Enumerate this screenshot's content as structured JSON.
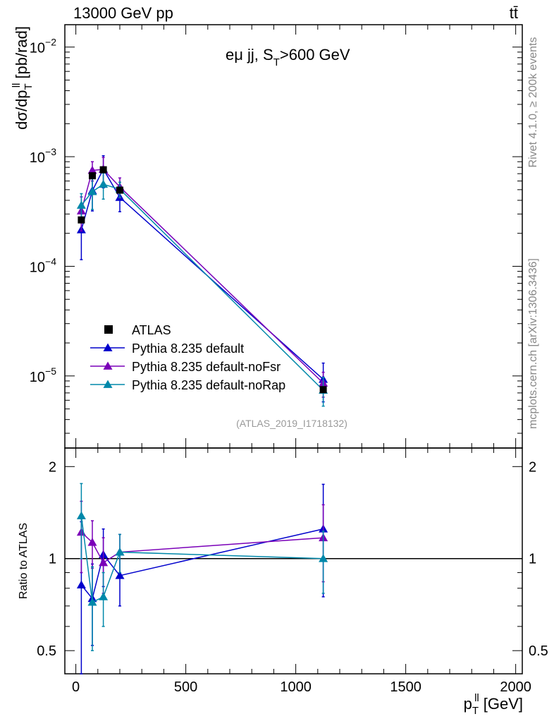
{
  "header": {
    "energy_label": "13000 GeV pp",
    "process_label": "tt̄"
  },
  "side_labels": {
    "rivet": "Rivet 4.1.0, ≥ 200k events",
    "mcplots": "mcplots.cern.ch [arXiv:1306.3436]"
  },
  "chart_data": {
    "type": "line",
    "title": "eμ jj, S_T>600 GeV",
    "title_main": "eμ jj, S",
    "title_sub": "T",
    "title_rest": ">600 GeV",
    "analysis_id": "(ATLAS_2019_I1718132)",
    "xlabel": "p_T^ll [GeV]",
    "xlabel_main": "p",
    "xlabel_sup": "ll",
    "xlabel_sub": "T",
    "xlabel_unit": "[GeV]",
    "ylabel": "dσ/dp_T^ll [pb/rad]",
    "ylabel_main": "dσ/dp",
    "ylabel_sup": "ll",
    "ylabel_sub": "T",
    "ylabel_unit": "[pb/rad]",
    "ratio_ylabel": "Ratio to ATLAS",
    "xlim": [
      -50,
      2030
    ],
    "ylim": [
      2.2e-06,
      0.016
    ],
    "yscale": "log",
    "ratio_ylim": [
      0.42,
      2.3
    ],
    "x_ticks": [
      0,
      500,
      1000,
      1500,
      2000
    ],
    "x_tick_labels": [
      "0",
      "500",
      "1000",
      "1500",
      "2000"
    ],
    "y_ticks": [
      1e-05,
      0.0001,
      0.001,
      0.01
    ],
    "y_tick_labels": [
      {
        "base": "10",
        "exp": "−5"
      },
      {
        "base": "10",
        "exp": "−4"
      },
      {
        "base": "10",
        "exp": "−3"
      },
      {
        "base": "10",
        "exp": "−2"
      }
    ],
    "ratio_ticks": [
      0.5,
      1,
      2
    ],
    "ratio_tick_labels": [
      "0.5",
      "1",
      "2"
    ],
    "x": [
      25,
      75,
      125,
      200,
      1125
    ],
    "data": {
      "name": "ATLAS",
      "color": "#000000",
      "values": [
        0.000265,
        0.00067,
        0.00076,
        0.000495,
        7.5e-06
      ]
    },
    "series": [
      {
        "name": "Pythia 8.235 default",
        "color": "#0000cc",
        "values": [
          0.000215,
          0.00049,
          0.00077,
          0.000425,
          9.3e-06
        ],
        "err_up": [
          0.0001,
          0.00017,
          0.00025,
          0.00011,
          3.8e-06
        ],
        "err_down": [
          0.0001,
          0.00017,
          0.00025,
          0.00011,
          3.5e-06
        ],
        "ratio": [
          0.82,
          0.74,
          1.03,
          0.88,
          1.25
        ],
        "ratio_err": [
          0.5,
          0.22,
          0.22,
          0.18,
          0.5
        ]
      },
      {
        "name": "Pythia 8.235 default-noFsr",
        "color": "#7a00b8",
        "values": [
          0.00032,
          0.00075,
          0.000765,
          0.00053,
          8.6e-06
        ],
        "err_up": [
          0.00011,
          0.00015,
          0.00022,
          0.00011,
          2.2e-06
        ],
        "err_down": [
          0.00011,
          0.00015,
          0.00022,
          0.00011,
          2.2e-06
        ],
        "ratio": [
          1.22,
          1.13,
          0.97,
          1.05,
          1.17
        ],
        "ratio_err": [
          0.32,
          0.2,
          0.2,
          0.15,
          0.33
        ]
      },
      {
        "name": "Pythia 8.235 default-noRap",
        "color": "#0088aa",
        "values": [
          0.00036,
          0.00048,
          0.00056,
          0.000505,
          7.4e-06
        ],
        "err_up": [
          0.0001,
          0.00015,
          0.00015,
          8e-05,
          2.3e-06
        ],
        "err_down": [
          0.0001,
          0.00015,
          0.00015,
          8e-05,
          2.1e-06
        ],
        "ratio": [
          1.38,
          0.72,
          0.75,
          1.05,
          1.0
        ],
        "ratio_err": [
          0.38,
          0.22,
          0.15,
          0.15,
          0.23
        ]
      }
    ],
    "legend_position": "lower-left"
  }
}
